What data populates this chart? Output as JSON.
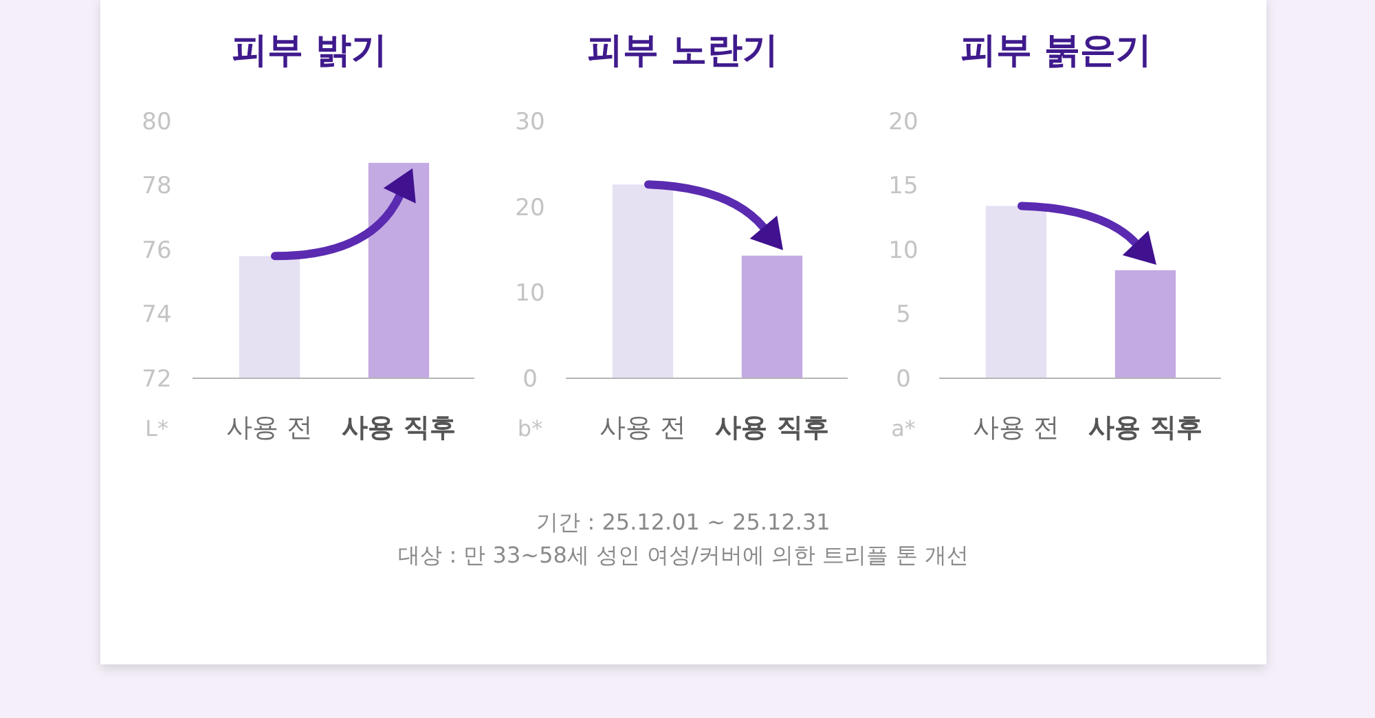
{
  "chart_data": [
    {
      "type": "bar",
      "title": "피부 밝기",
      "ylabel": "L*",
      "categories": [
        "사용 전",
        "사용 직후"
      ],
      "values": [
        75.8,
        78.7
      ],
      "colors": [
        "#e6e0f3",
        "#c3aae3"
      ],
      "ylim": [
        72,
        80
      ],
      "yticks": [
        72,
        74,
        76,
        78,
        80
      ],
      "grid": false,
      "annotations": [
        "기간 : 25.12.01 ~ 25.12.31",
        "대상 : 만 33~58세 성인 여성/커버에 의한 트리플 톤 개선"
      ]
    },
    {
      "type": "bar",
      "title": "피부 노란기",
      "ylabel": "b*",
      "categories": [
        "사용 전",
        "사용 직후"
      ],
      "values": [
        22.6,
        14.3
      ],
      "colors": [
        "#e6e0f3",
        "#c3aae3"
      ],
      "ylim": [
        0,
        30
      ],
      "yticks": [
        0,
        10,
        20,
        30
      ],
      "grid": false
    },
    {
      "type": "bar",
      "title": "피부 붉은기",
      "ylabel": "a*",
      "categories": [
        "사용 전",
        "사용 직후"
      ],
      "values": [
        13.4,
        8.4
      ],
      "colors": [
        "#e6e0f3",
        "#c3aae3"
      ],
      "ylim": [
        0,
        20
      ],
      "yticks": [
        0,
        5,
        10,
        15,
        20
      ],
      "grid": false
    }
  ]
}
